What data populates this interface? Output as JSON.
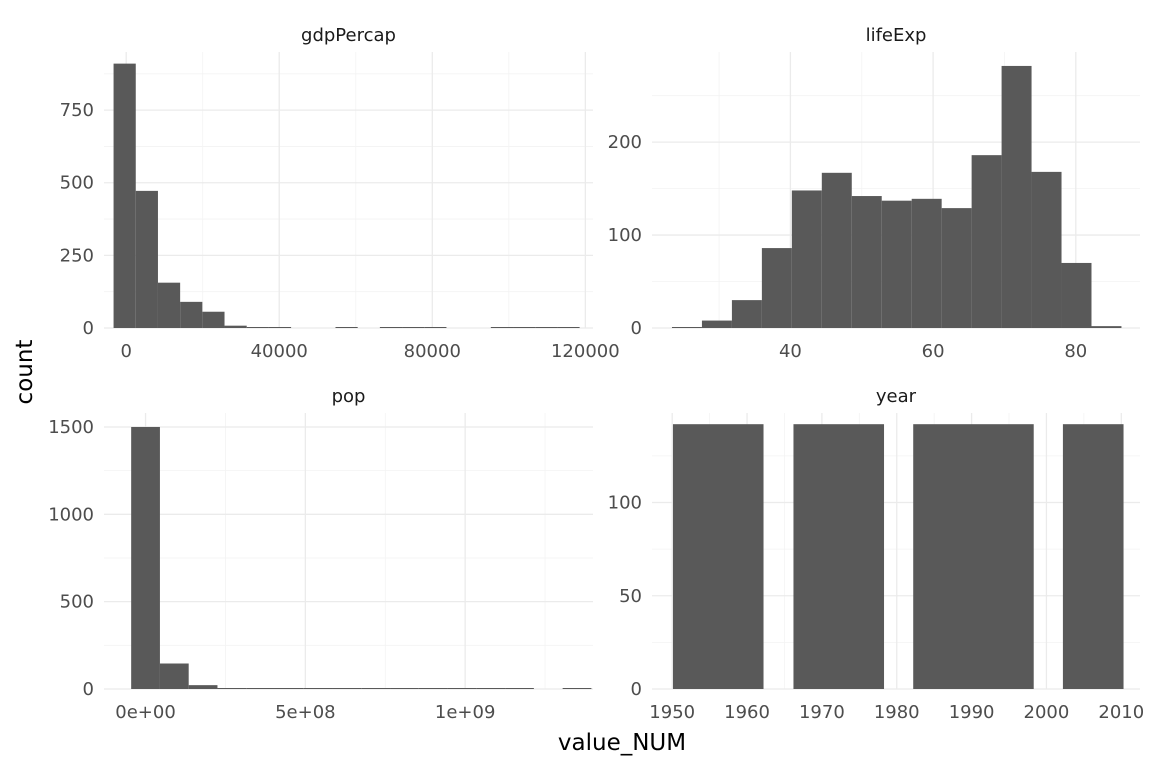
{
  "chart_data": {
    "type": "bar",
    "subtype": "faceted-histogram",
    "xlabel": "value_NUM",
    "ylabel": "count",
    "grid": true,
    "bar_color": "#595959",
    "panels": [
      {
        "title": "gdpPercap",
        "xlim": [
          -5800,
          122000
        ],
        "ylim": [
          0,
          950
        ],
        "x_ticks": [
          0,
          40000,
          80000,
          120000
        ],
        "x_tick_labels": [
          "0",
          "40000",
          "80000",
          "120000"
        ],
        "y_ticks": [
          0,
          250,
          500,
          750
        ],
        "y_tick_labels": [
          "0",
          "250",
          "500",
          "750"
        ],
        "bins": [
          {
            "x0": -3300,
            "x1": 2500,
            "count": 910
          },
          {
            "x0": 2500,
            "x1": 8300,
            "count": 472
          },
          {
            "x0": 8300,
            "x1": 14100,
            "count": 156
          },
          {
            "x0": 14100,
            "x1": 19900,
            "count": 90
          },
          {
            "x0": 19900,
            "x1": 25700,
            "count": 56
          },
          {
            "x0": 25700,
            "x1": 31500,
            "count": 8
          },
          {
            "x0": 31500,
            "x1": 37300,
            "count": 3
          },
          {
            "x0": 37300,
            "x1": 43100,
            "count": 1
          },
          {
            "x0": 43100,
            "x1": 48900,
            "count": 0
          },
          {
            "x0": 48900,
            "x1": 54700,
            "count": 0
          },
          {
            "x0": 54700,
            "x1": 60500,
            "count": 1
          },
          {
            "x0": 60500,
            "x1": 66300,
            "count": 0
          },
          {
            "x0": 66300,
            "x1": 72100,
            "count": 1
          },
          {
            "x0": 72100,
            "x1": 77900,
            "count": 1
          },
          {
            "x0": 77900,
            "x1": 83700,
            "count": 1
          },
          {
            "x0": 83700,
            "x1": 89500,
            "count": 0
          },
          {
            "x0": 89500,
            "x1": 95300,
            "count": 0
          },
          {
            "x0": 95300,
            "x1": 101100,
            "count": 1
          },
          {
            "x0": 101100,
            "x1": 106900,
            "count": 1
          },
          {
            "x0": 106900,
            "x1": 112700,
            "count": 1
          },
          {
            "x0": 112700,
            "x1": 118500,
            "count": 1
          }
        ]
      },
      {
        "title": "lifeExp",
        "xlim": [
          20.6,
          89.0
        ],
        "ylim": [
          0,
          297
        ],
        "x_ticks": [
          40,
          60,
          80
        ],
        "x_tick_labels": [
          "40",
          "60",
          "80"
        ],
        "y_ticks": [
          0,
          100,
          200
        ],
        "y_tick_labels": [
          "0",
          "100",
          "200"
        ],
        "bins": [
          {
            "x0": 23.4,
            "x1": 27.6,
            "count": 1
          },
          {
            "x0": 27.6,
            "x1": 31.8,
            "count": 8
          },
          {
            "x0": 31.8,
            "x1": 36.0,
            "count": 30
          },
          {
            "x0": 36.0,
            "x1": 40.2,
            "count": 86
          },
          {
            "x0": 40.2,
            "x1": 44.4,
            "count": 148
          },
          {
            "x0": 44.4,
            "x1": 48.6,
            "count": 167
          },
          {
            "x0": 48.6,
            "x1": 52.8,
            "count": 142
          },
          {
            "x0": 52.8,
            "x1": 57.0,
            "count": 137
          },
          {
            "x0": 57.0,
            "x1": 61.2,
            "count": 139
          },
          {
            "x0": 61.2,
            "x1": 65.4,
            "count": 129
          },
          {
            "x0": 65.4,
            "x1": 69.6,
            "count": 186
          },
          {
            "x0": 69.6,
            "x1": 73.8,
            "count": 282
          },
          {
            "x0": 73.8,
            "x1": 78.0,
            "count": 168
          },
          {
            "x0": 78.0,
            "x1": 82.2,
            "count": 70
          },
          {
            "x0": 82.2,
            "x1": 86.4,
            "count": 2
          }
        ]
      },
      {
        "title": "pop",
        "xlim": [
          -130000000,
          1400000000
        ],
        "ylim": [
          0,
          1580
        ],
        "x_ticks": [
          0,
          500000000,
          1000000000
        ],
        "x_tick_labels": [
          "0e+00",
          "5e+08",
          "1e+09"
        ],
        "y_ticks": [
          0,
          500,
          1000,
          1500
        ],
        "y_tick_labels": [
          "0",
          "500",
          "1000",
          "1500"
        ],
        "bins": [
          {
            "x0": -45000000,
            "x1": 45000000,
            "count": 1500
          },
          {
            "x0": 45000000,
            "x1": 135000000,
            "count": 146
          },
          {
            "x0": 135000000,
            "x1": 225000000,
            "count": 22
          },
          {
            "x0": 225000000,
            "x1": 315000000,
            "count": 5
          },
          {
            "x0": 315000000,
            "x1": 405000000,
            "count": 3
          },
          {
            "x0": 405000000,
            "x1": 495000000,
            "count": 2
          },
          {
            "x0": 495000000,
            "x1": 585000000,
            "count": 2
          },
          {
            "x0": 585000000,
            "x1": 675000000,
            "count": 2
          },
          {
            "x0": 675000000,
            "x1": 765000000,
            "count": 2
          },
          {
            "x0": 765000000,
            "x1": 855000000,
            "count": 2
          },
          {
            "x0": 855000000,
            "x1": 945000000,
            "count": 2
          },
          {
            "x0": 945000000,
            "x1": 1035000000,
            "count": 2
          },
          {
            "x0": 1035000000,
            "x1": 1125000000,
            "count": 2
          },
          {
            "x0": 1125000000,
            "x1": 1215000000,
            "count": 1
          },
          {
            "x0": 1215000000,
            "x1": 1305000000,
            "count": 0
          },
          {
            "x0": 1305000000,
            "x1": 1395000000,
            "count": 1
          }
        ]
      },
      {
        "title": "year",
        "xlim": [
          1947.3,
          2012.5
        ],
        "ylim": [
          0,
          148
        ],
        "x_ticks": [
          1950,
          1960,
          1970,
          1980,
          1990,
          2000,
          2010
        ],
        "x_tick_labels": [
          "1950",
          "1960",
          "1970",
          "1980",
          "1990",
          "2000",
          "2010"
        ],
        "y_ticks": [
          0,
          50,
          100
        ],
        "y_tick_labels": [
          "0",
          "50",
          "100"
        ],
        "bins": [
          {
            "x0": 1950.1,
            "x1": 1962.2,
            "count": 142
          },
          {
            "x0": 1966.2,
            "x1": 1978.3,
            "count": 142
          },
          {
            "x0": 1982.2,
            "x1": 1998.3,
            "count": 142
          },
          {
            "x0": 2002.2,
            "x1": 2010.3,
            "count": 142
          }
        ]
      }
    ]
  }
}
